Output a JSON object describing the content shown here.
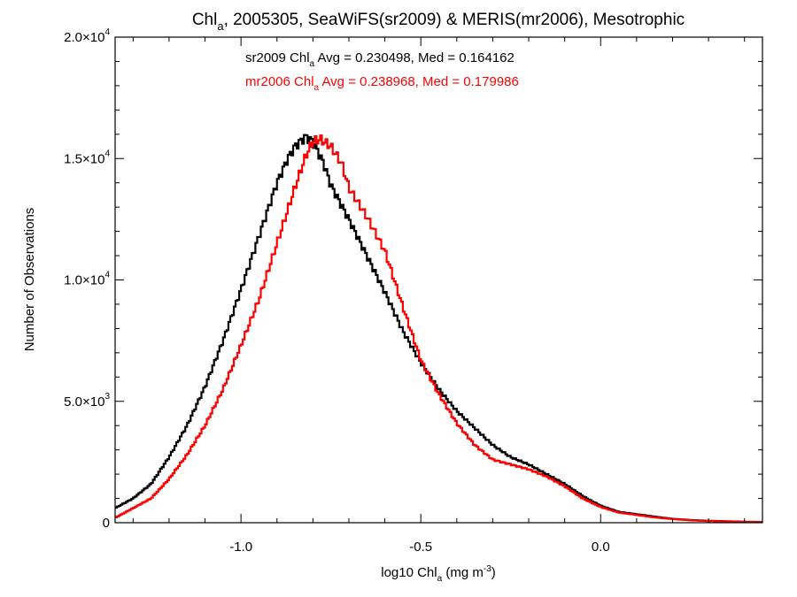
{
  "chart_data": {
    "type": "line",
    "title": {
      "pre": "Chl",
      "sub": "a",
      "post": ", 2005305, SeaWiFS(sr2009) & MERIS(mr2006), Mesotrophic"
    },
    "xlabel": {
      "pre": "log10 Chl",
      "sub": "a",
      "mid": " (mg m",
      "sup": "-3",
      "post": ")"
    },
    "ylabel": "Number of Observations",
    "xlim": [
      -1.35,
      0.45
    ],
    "ylim": [
      0,
      20000
    ],
    "x_ticks": [
      {
        "value": -1.0,
        "label": "-1.0"
      },
      {
        "value": -0.5,
        "label": "-0.5"
      },
      {
        "value": 0.0,
        "label": "0.0"
      }
    ],
    "y_ticks": [
      {
        "value": 0,
        "mant": "0",
        "exp": ""
      },
      {
        "value": 5000,
        "mant": "5.0×10",
        "exp": "3"
      },
      {
        "value": 10000,
        "mant": "1.0×10",
        "exp": "4"
      },
      {
        "value": 15000,
        "mant": "1.5×10",
        "exp": "4"
      },
      {
        "value": 20000,
        "mant": "2.0×10",
        "exp": "4"
      }
    ],
    "annotations": [
      {
        "pre": "sr2009 Chl",
        "sub": "a",
        "post": " Avg = 0.230498, Med = 0.164162",
        "color": "#000000"
      },
      {
        "pre": "mr2006 Chl",
        "sub": "a",
        "post": " Avg = 0.238968, Med = 0.179986",
        "color": "#ff0000"
      }
    ],
    "series": [
      {
        "color": "#000000",
        "x": [
          -1.35,
          -1.3,
          -1.25,
          -1.2,
          -1.15,
          -1.1,
          -1.05,
          -1.0,
          -0.95,
          -0.9,
          -0.87,
          -0.85,
          -0.82,
          -0.8,
          -0.77,
          -0.75,
          -0.7,
          -0.65,
          -0.6,
          -0.55,
          -0.5,
          -0.45,
          -0.4,
          -0.35,
          -0.3,
          -0.25,
          -0.2,
          -0.15,
          -0.1,
          -0.05,
          0.0,
          0.05,
          0.1,
          0.15,
          0.2,
          0.25,
          0.3,
          0.35,
          0.4,
          0.45
        ],
        "values": [
          600,
          1000,
          1600,
          2700,
          4000,
          5600,
          7500,
          9600,
          11800,
          14000,
          15000,
          15500,
          15900,
          15700,
          14800,
          13900,
          12500,
          11000,
          9500,
          7900,
          6600,
          5500,
          4600,
          3900,
          3200,
          2700,
          2400,
          2000,
          1600,
          1100,
          700,
          450,
          350,
          250,
          160,
          110,
          80,
          60,
          40,
          30
        ]
      },
      {
        "color": "#ff0000",
        "x": [
          -1.35,
          -1.3,
          -1.25,
          -1.2,
          -1.15,
          -1.1,
          -1.05,
          -1.0,
          -0.95,
          -0.9,
          -0.85,
          -0.82,
          -0.8,
          -0.78,
          -0.75,
          -0.72,
          -0.7,
          -0.65,
          -0.6,
          -0.55,
          -0.5,
          -0.45,
          -0.4,
          -0.35,
          -0.3,
          -0.25,
          -0.2,
          -0.15,
          -0.1,
          -0.05,
          0.0,
          0.05,
          0.1,
          0.15,
          0.2,
          0.25,
          0.3,
          0.35,
          0.4,
          0.45
        ],
        "values": [
          200,
          600,
          1000,
          1800,
          2800,
          4000,
          5500,
          7300,
          9200,
          11500,
          13800,
          15100,
          15700,
          15800,
          15500,
          14800,
          13800,
          12600,
          11200,
          8900,
          6700,
          5300,
          4100,
          3200,
          2600,
          2400,
          2200,
          1900,
          1500,
          1000,
          650,
          420,
          320,
          220,
          150,
          100,
          70,
          50,
          35,
          25
        ]
      }
    ]
  }
}
